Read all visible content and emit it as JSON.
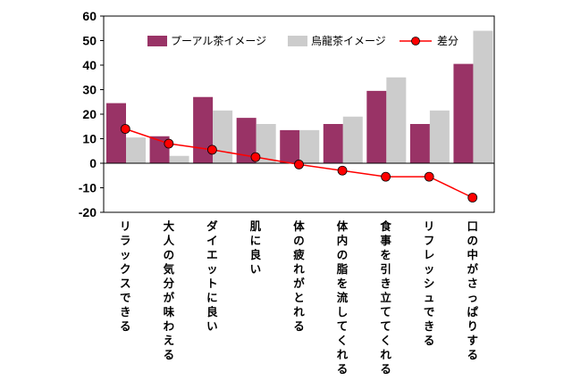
{
  "chart_data": {
    "type": "bar",
    "categories": [
      "リラックスできる",
      "大人の気分が味わえる",
      "ダイエットに良い",
      "肌に良い",
      "体の疲れがとれる",
      "体内の脂を流してくれる",
      "食事を引き立ててくれる",
      "リフレッシュできる",
      "口の中がさっぱりする"
    ],
    "series": [
      {
        "name": "プーアル茶イメージ",
        "type": "bar",
        "color": "#993366",
        "values": [
          24.5,
          11,
          27,
          18.5,
          13.5,
          16,
          29.5,
          16,
          40.5
        ]
      },
      {
        "name": "烏龍茶イメージ",
        "type": "bar",
        "color": "#cccccc",
        "values": [
          10.5,
          3,
          21.5,
          16,
          13.5,
          19,
          35,
          21.5,
          54
        ]
      },
      {
        "name": "差分",
        "type": "line",
        "color": "#ff0000",
        "values": [
          14,
          8,
          5.5,
          2.5,
          -0.5,
          -3,
          -5.5,
          -5.5,
          -14
        ]
      }
    ],
    "ylim": [
      -20,
      60
    ],
    "yticks": [
      "60",
      "50",
      "40",
      "30",
      "20",
      "10",
      "0",
      "-10",
      "-20"
    ],
    "legend_position": "top",
    "grid": false
  }
}
